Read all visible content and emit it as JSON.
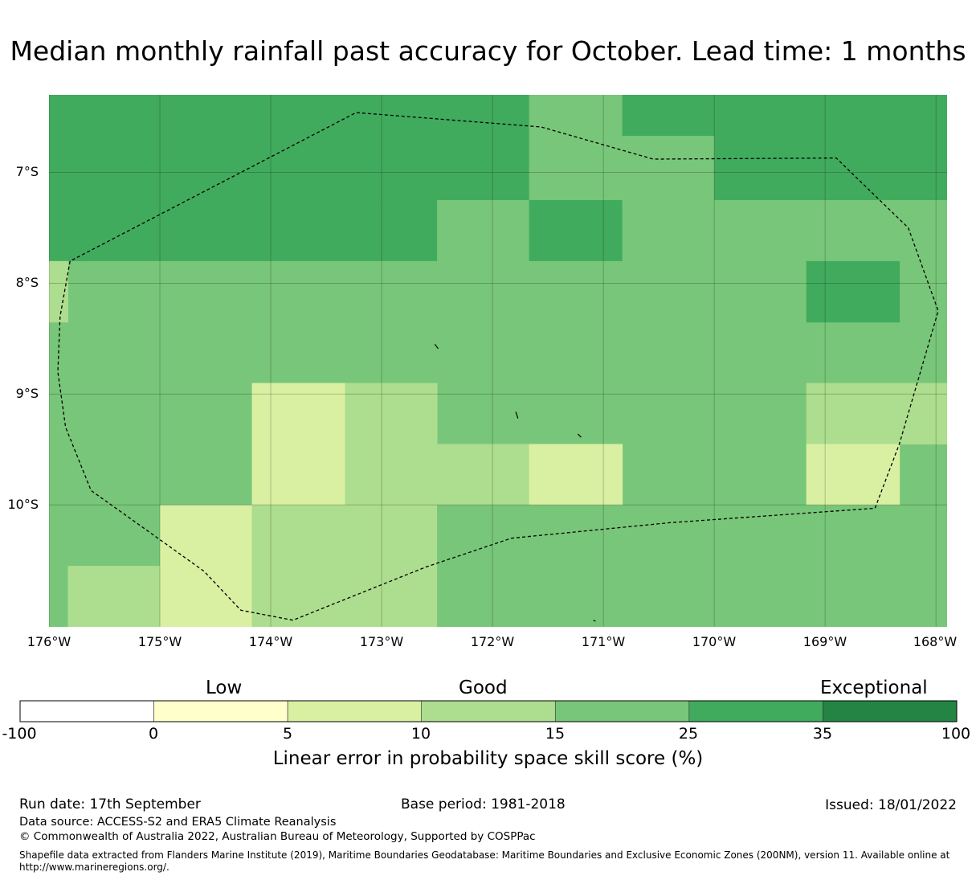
{
  "title": "Median monthly rainfall past accuracy for October. Lead time: 1 months",
  "map": {
    "lat_labels": [
      "7°S",
      "8°S",
      "9°S",
      "10°S"
    ],
    "lon_labels": [
      "176°W",
      "175°W",
      "174°W",
      "173°W",
      "172°W",
      "171°W",
      "170°W",
      "169°W",
      "168°W"
    ],
    "lon_range_deg": [
      -176,
      -167.9
    ],
    "lat_range_deg": [
      -6.3,
      -11.1
    ],
    "cells": [
      {
        "lon": [
          -176,
          -171.67
        ],
        "lat": [
          -6.3,
          -7.25
        ],
        "score": 30
      },
      {
        "lon": [
          -171.67,
          -170.83
        ],
        "lat": [
          -6.3,
          -7.25
        ],
        "score": 20
      },
      {
        "lon": [
          -170.83,
          -170.0
        ],
        "lat": [
          -6.3,
          -6.67
        ],
        "score": 30
      },
      {
        "lon": [
          -170.83,
          -170.0
        ],
        "lat": [
          -6.67,
          -7.25
        ],
        "score": 20
      },
      {
        "lon": [
          -170.0,
          -167.9
        ],
        "lat": [
          -6.3,
          -7.25
        ],
        "score": 30
      },
      {
        "lon": [
          -176,
          -172.5
        ],
        "lat": [
          -7.25,
          -7.8
        ],
        "score": 30
      },
      {
        "lon": [
          -172.5,
          -171.67
        ],
        "lat": [
          -7.25,
          -7.8
        ],
        "score": 20
      },
      {
        "lon": [
          -171.67,
          -170.83
        ],
        "lat": [
          -7.25,
          -7.8
        ],
        "score": 30
      },
      {
        "lon": [
          -170.83,
          -167.9
        ],
        "lat": [
          -7.25,
          -7.8
        ],
        "score": 20
      },
      {
        "lon": [
          -176,
          -167.9
        ],
        "lat": [
          -7.8,
          -8.9
        ],
        "score": 20
      },
      {
        "lon": [
          -176,
          -175.83
        ],
        "lat": [
          -7.8,
          -8.35
        ],
        "score": 12
      },
      {
        "lon": [
          -169.17,
          -168.33
        ],
        "lat": [
          -7.8,
          -8.35
        ],
        "score": 30
      },
      {
        "lon": [
          -172.5,
          -167.9
        ],
        "lat": [
          -8.9,
          -10.0
        ],
        "score": 20
      },
      {
        "lon": [
          -176,
          -174.17
        ],
        "lat": [
          -8.9,
          -10.0
        ],
        "score": 20
      },
      {
        "lon": [
          -174.17,
          -173.33
        ],
        "lat": [
          -8.9,
          -10.0
        ],
        "score": 7
      },
      {
        "lon": [
          -173.33,
          -172.5
        ],
        "lat": [
          -8.9,
          -10.0
        ],
        "score": 12
      },
      {
        "lon": [
          -172.5,
          -171.67
        ],
        "lat": [
          -9.45,
          -10.0
        ],
        "score": 12
      },
      {
        "lon": [
          -171.67,
          -170.83
        ],
        "lat": [
          -9.45,
          -10.0
        ],
        "score": 7
      },
      {
        "lon": [
          -169.17,
          -167.9
        ],
        "lat": [
          -8.9,
          -9.45
        ],
        "score": 12
      },
      {
        "lon": [
          -169.17,
          -168.33
        ],
        "lat": [
          -9.45,
          -10.0
        ],
        "score": 7
      },
      {
        "lon": [
          -176,
          -175.0
        ],
        "lat": [
          -10.0,
          -11.1
        ],
        "score": 20
      },
      {
        "lon": [
          -175.83,
          -175.0
        ],
        "lat": [
          -10.55,
          -11.1
        ],
        "score": 12
      },
      {
        "lon": [
          -175.0,
          -174.17
        ],
        "lat": [
          -10.0,
          -11.1
        ],
        "score": 7
      },
      {
        "lon": [
          -174.17,
          -172.5
        ],
        "lat": [
          -10.0,
          -11.1
        ],
        "score": 12
      },
      {
        "lon": [
          -172.5,
          -167.9
        ],
        "lat": [
          -10.0,
          -11.1
        ],
        "score": 20
      }
    ],
    "eez_boundary": [
      [
        -175.81,
        -7.8
      ],
      [
        -175.9,
        -8.3
      ],
      [
        -175.92,
        -8.8
      ],
      [
        -175.85,
        -9.3
      ],
      [
        -175.62,
        -9.87
      ],
      [
        -175.2,
        -10.17
      ],
      [
        -174.6,
        -10.6
      ],
      [
        -174.27,
        -10.95
      ],
      [
        -173.8,
        -11.04
      ],
      [
        -172.6,
        -10.56
      ],
      [
        -171.83,
        -10.3
      ],
      [
        -170.4,
        -10.16
      ],
      [
        -168.55,
        -10.03
      ],
      [
        -168.33,
        -9.45
      ],
      [
        -167.98,
        -8.25
      ],
      [
        -168.25,
        -7.5
      ],
      [
        -168.9,
        -6.87
      ],
      [
        -170.55,
        -6.88
      ],
      [
        -171.56,
        -6.59
      ],
      [
        -173.23,
        -6.46
      ],
      [
        -175.81,
        -7.8
      ]
    ],
    "islands": [
      [
        [
          -172.52,
          -8.55
        ],
        [
          -172.49,
          -8.59
        ]
      ],
      [
        [
          -171.79,
          -9.16
        ],
        [
          -171.77,
          -9.22
        ]
      ],
      [
        [
          -171.23,
          -9.36
        ],
        [
          -171.2,
          -9.39
        ]
      ],
      [
        [
          -171.09,
          -11.04
        ],
        [
          -171.07,
          -11.05
        ]
      ]
    ]
  },
  "colorbar": {
    "categories": [
      "Low",
      "Good",
      "Exceptional"
    ],
    "bounds": [
      -100,
      0,
      5,
      10,
      15,
      25,
      35,
      100
    ],
    "tick_labels": [
      "-100",
      "0",
      "5",
      "10",
      "15",
      "25",
      "35",
      "100"
    ],
    "colors": [
      "#ffffff",
      "#ffffcc",
      "#d9f0a3",
      "#addd8e",
      "#78c679",
      "#41ab5d",
      "#238443"
    ],
    "label": "Linear error in probability space skill score (%)"
  },
  "footer": {
    "run_date": "Run date: 17th September",
    "base_period": "Base period: 1981-2018",
    "issued": "Issued: 18/01/2022",
    "data_source": "Data source: ACCESS-S2 and ERA5 Climate Reanalysis",
    "copyright": "© Commonwealth of Australia 2022, Australian Bureau of Meteorology, Supported by COSPPac",
    "shapefile_line1": "Shapefile data extracted from Flanders Marine Institute (2019), Maritime Boundaries Geodatabase: Maritime Boundaries and Exclusive Economic Zones (200NM), version 11. Available online at",
    "shapefile_line2": "http://www.marineregions.org/."
  }
}
